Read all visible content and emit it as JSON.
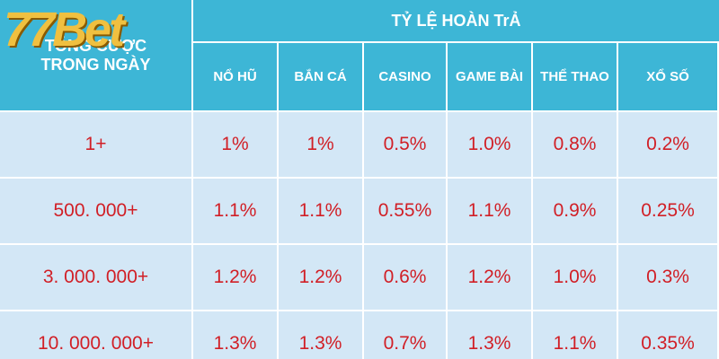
{
  "logo": "77Bet",
  "table": {
    "corner_header": [
      "TỔNG CƯỢC",
      "TRONG NGÀY"
    ],
    "group_header": "TỶ LỆ HOÀN TrẢ",
    "columns": [
      "NỔ HŨ",
      "BẮN CÁ",
      "CASINO",
      "GAME BÀI",
      "THỂ THAO",
      "XỔ SỐ"
    ],
    "rows": [
      [
        "1+",
        "1%",
        "1%",
        "0.5%",
        "1.0%",
        "0.8%",
        "0.2%"
      ],
      [
        "500. 000+",
        "1.1%",
        "1.1%",
        "0.55%",
        "1.1%",
        "0.9%",
        "0.25%"
      ],
      [
        "3. 000. 000+",
        "1.2%",
        "1.2%",
        "0.6%",
        "1.2%",
        "1.0%",
        "0.3%"
      ],
      [
        "10. 000. 000+",
        "1.3%",
        "1.3%",
        "0.7%",
        "1.3%",
        "1.1%",
        "0.35%"
      ]
    ]
  }
}
